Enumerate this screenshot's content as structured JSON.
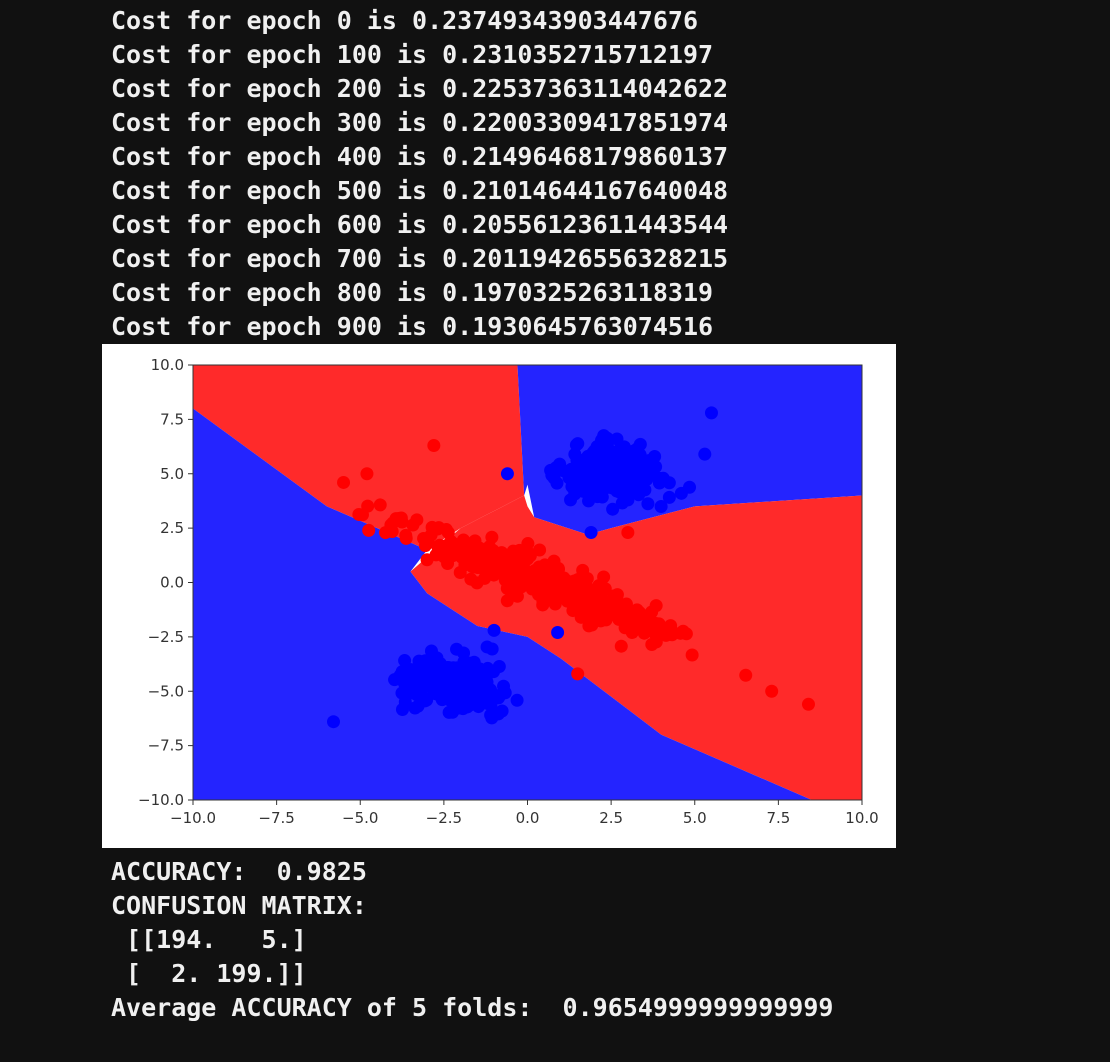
{
  "log": [
    "Cost for epoch 0 is 0.23749343903447676",
    "Cost for epoch 100 is 0.2310352715712197",
    "Cost for epoch 200 is 0.22537363114042622",
    "Cost for epoch 300 is 0.22003309417851974",
    "Cost for epoch 400 is 0.21496468179860137",
    "Cost for epoch 500 is 0.21014644167640048",
    "Cost for epoch 600 is 0.20556123611443544",
    "Cost for epoch 700 is 0.20119426556328215",
    "Cost for epoch 800 is 0.1970325263118319",
    "Cost for epoch 900 is 0.1930645763074516"
  ],
  "results": {
    "accuracy": "ACCURACY:  0.9825",
    "confusion_label": "CONFUSION MATRIX:",
    "confusion_row1": " [[194.   5.]",
    "confusion_row2": " [  2. 199.]]",
    "average": "Average ACCURACY of 5 folds:  0.9654999999999999"
  },
  "colors": {
    "background": "#111111",
    "text": "#f0f0f0",
    "region_red": "#ff2a2a",
    "region_blue": "#2424ff",
    "point_red": "#ff0000",
    "point_blue": "#0000ff"
  },
  "chart_data": {
    "type": "scatter",
    "title": "",
    "xlabel": "",
    "ylabel": "",
    "xlim": [
      -10,
      10
    ],
    "ylim": [
      -10,
      10
    ],
    "x_ticks": [
      "−10.0",
      "−7.5",
      "−5.0",
      "−2.5",
      "0.0",
      "2.5",
      "5.0",
      "7.5",
      "10.0"
    ],
    "y_ticks": [
      "10.0",
      "7.5",
      "5.0",
      "2.5",
      "0.0",
      "−2.5",
      "−5.0",
      "−7.5",
      "−10.0"
    ],
    "x_tick_values": [
      -10,
      -7.5,
      -5,
      -2.5,
      0,
      2.5,
      5,
      7.5,
      10
    ],
    "y_tick_values": [
      10,
      7.5,
      5,
      2.5,
      0,
      -2.5,
      -5,
      -7.5,
      -10
    ],
    "grid": false,
    "decision_regions": [
      {
        "class": "red",
        "polygon": [
          [
            -10,
            10
          ],
          [
            -0.3,
            10
          ],
          [
            -0.1,
            4
          ],
          [
            -2,
            2.5
          ],
          [
            -3,
            1.5
          ],
          [
            -6,
            3.5
          ],
          [
            -10,
            8
          ]
        ]
      },
      {
        "class": "blue",
        "polygon": [
          [
            -0.3,
            10
          ],
          [
            10,
            10
          ],
          [
            10,
            4
          ],
          [
            5,
            3.5
          ],
          [
            2.5,
            2.5
          ],
          [
            1.8,
            2.2
          ],
          [
            0.2,
            3
          ],
          [
            0,
            4.5
          ],
          [
            -0.1,
            4
          ]
        ]
      },
      {
        "class": "red",
        "polygon": [
          [
            1.8,
            2.2
          ],
          [
            2.5,
            2.5
          ],
          [
            5,
            3.5
          ],
          [
            10,
            4
          ],
          [
            10,
            -10
          ],
          [
            8.5,
            -10
          ],
          [
            4,
            -7
          ],
          [
            1,
            -3.5
          ],
          [
            0,
            -2.5
          ],
          [
            -1.5,
            -2
          ],
          [
            -3,
            -0.5
          ],
          [
            -3.5,
            0.5
          ],
          [
            -2,
            2.5
          ],
          [
            -0.1,
            4
          ],
          [
            0,
            3.5
          ],
          [
            0.2,
            3
          ]
        ]
      },
      {
        "class": "blue",
        "polygon": [
          [
            -10,
            8
          ],
          [
            -6,
            3.5
          ],
          [
            -3,
            1.5
          ],
          [
            -3.5,
            0.5
          ],
          [
            -3,
            -0.5
          ],
          [
            -1.5,
            -2
          ],
          [
            0,
            -2.5
          ],
          [
            1,
            -3.5
          ],
          [
            4,
            -7
          ],
          [
            8.5,
            -10
          ],
          [
            -10,
            -10
          ]
        ]
      }
    ],
    "series": [
      {
        "class": "blue",
        "cluster": "upper-right",
        "center": [
          2.5,
          5.0
        ],
        "spread": [
          1.2,
          0.9
        ],
        "count": 200,
        "outliers": [
          [
            -0.6,
            5.0
          ],
          [
            1.9,
            2.3
          ],
          [
            5.3,
            5.9
          ],
          [
            4.6,
            4.1
          ],
          [
            5.5,
            7.8
          ]
        ]
      },
      {
        "class": "blue",
        "cluster": "lower-left",
        "center": [
          -2.3,
          -4.6
        ],
        "spread": [
          1.1,
          0.9
        ],
        "count": 200,
        "outliers": [
          [
            -5.8,
            -6.4
          ],
          [
            -1.0,
            -2.2
          ],
          [
            0.9,
            -2.3
          ]
        ]
      },
      {
        "class": "red",
        "cluster": "diagonal",
        "center": [
          0.5,
          0.0
        ],
        "spread_along": 3.3,
        "spread_across": 1.0,
        "count": 400,
        "outliers": [
          [
            -2.8,
            6.3
          ],
          [
            -4.8,
            5.0
          ],
          [
            -5.5,
            4.6
          ],
          [
            1.5,
            -4.2
          ],
          [
            8.4,
            -5.6
          ],
          [
            7.3,
            -5.0
          ],
          [
            3.0,
            2.3
          ]
        ]
      }
    ]
  }
}
